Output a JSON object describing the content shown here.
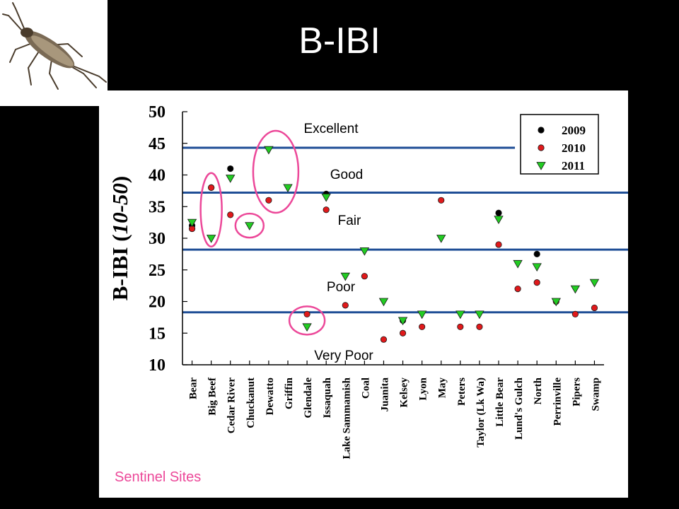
{
  "slide": {
    "title": "B-IBI",
    "caption": "Sentinel Sites"
  },
  "colors": {
    "threshold_line": "#1f4e96",
    "highlight_circle": "#ec4899",
    "y2009": "#000000",
    "y2010": "#e0191b",
    "y2011": "#22cc22"
  },
  "icons": {
    "photo": "stonefly-insect-photo"
  },
  "chart_data": {
    "type": "scatter",
    "title": "",
    "xlabel": "",
    "ylabel_main": "B-IBI (",
    "ylabel_range": "10-50",
    "ylabel_close": ")",
    "ylim": [
      10,
      50
    ],
    "yticks": [
      10,
      15,
      20,
      25,
      30,
      35,
      40,
      45,
      50
    ],
    "categories": [
      "Bear",
      "Big Beef",
      "Cedar River",
      "Chuckanut",
      "Dewatto",
      "Griffin",
      "Glendale",
      "Issaquah",
      "Lake Sammamish",
      "Coal",
      "Juanita",
      "Kelsey",
      "Lyon",
      "May",
      "Peters",
      "Taylor (Lk Wa)",
      "Little Bear",
      "Lund's Gulch",
      "North",
      "Perrinville",
      "Pipers",
      "Swamp"
    ],
    "series": [
      {
        "name": "2009",
        "marker": "circle",
        "values": [
          32,
          38,
          41,
          null,
          null,
          null,
          null,
          37,
          null,
          null,
          null,
          17,
          null,
          null,
          null,
          null,
          34,
          null,
          27.5,
          null,
          null,
          null
        ]
      },
      {
        "name": "2010",
        "marker": "circle",
        "values": [
          31.5,
          38,
          33.7,
          null,
          36,
          null,
          18,
          34.5,
          19.4,
          24,
          14,
          15,
          16,
          36,
          16,
          16,
          29,
          22,
          23,
          20,
          18,
          19
        ]
      },
      {
        "name": "2011",
        "marker": "triangle",
        "values": [
          32.5,
          30,
          39.5,
          32,
          44,
          38,
          16,
          36.5,
          24,
          28,
          20,
          17,
          18,
          30,
          18,
          18,
          33,
          26,
          25.5,
          20,
          22,
          23
        ]
      }
    ],
    "thresholds": [
      {
        "value": 44.3,
        "label": "Excellent"
      },
      {
        "value": 37.2,
        "label": "Good"
      },
      {
        "value": 28.2,
        "label": "Fair"
      },
      {
        "value": 18.3,
        "label": "Poor"
      }
    ],
    "bottom_band_label": "Very Poor",
    "legend": {
      "placement": "top-right",
      "entries": [
        "2009",
        "2010",
        "2011"
      ]
    },
    "highlights": [
      "Big Beef",
      "Chuckanut",
      "Dewatto",
      "Glendale"
    ]
  }
}
